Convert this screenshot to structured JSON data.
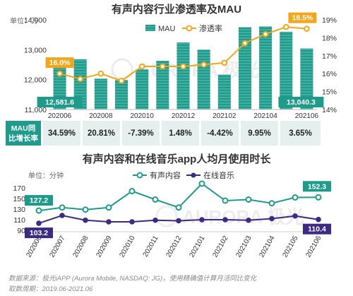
{
  "chart_data": [
    {
      "type": "bar",
      "title": "有声内容行业渗透率及MAU",
      "ylabel_left": "单位：万",
      "categories": [
        "202006",
        "202007",
        "202008",
        "202009",
        "202010",
        "202011",
        "202012",
        "202101",
        "202102",
        "202103",
        "202104",
        "202105",
        "202106"
      ],
      "x_tick_labels": [
        "202006",
        "202008",
        "202010",
        "202012",
        "202102",
        "202104",
        "202106"
      ],
      "ylim_left": [
        11000,
        14000
      ],
      "left_ticks": [
        "14,000",
        "13,000",
        "12,000",
        "11,000"
      ],
      "ylim_right": [
        14,
        19
      ],
      "right_ticks": [
        "19%",
        "18%",
        "17%",
        "16%",
        "15%",
        "14%"
      ],
      "series": [
        {
          "name": "MAU",
          "type": "bar",
          "color": "#1f9b8b",
          "values": [
            12581.6,
            12680,
            12030,
            11990,
            12340,
            12630,
            13240,
            13000,
            12170,
            13750,
            13780,
            13600,
            13040.3
          ]
        },
        {
          "name": "渗透率",
          "type": "line",
          "color": "#f2a71b",
          "values": [
            16.0,
            15.7,
            16.0,
            15.6,
            16.4,
            16.4,
            16.4,
            16.5,
            16.6,
            17.7,
            18.2,
            18.6,
            18.5
          ]
        }
      ],
      "data_labels": {
        "first_bar": "12,581.6",
        "last_bar": "13,040.3",
        "first_line": "16.0%",
        "last_line": "18.5%"
      },
      "growth_row": {
        "label_line1": "MAU同",
        "label_line2": "比增长率",
        "values": [
          "34.59%",
          "20.81%",
          "-7.39%",
          "1.48%",
          "-4.42%",
          "9.95%",
          "3.65%"
        ]
      },
      "watermark": "AURORA 极光"
    },
    {
      "type": "line",
      "title": "有声内容和在线音乐app人均月使用时长",
      "ylabel": "单位：分钟",
      "categories": [
        "202006",
        "202007",
        "202008",
        "202009",
        "202010",
        "202011",
        "202012",
        "202101",
        "202102",
        "202103",
        "202104",
        "202105",
        "202106"
      ],
      "ylim": [
        90,
        170
      ],
      "y_ticks": [
        "170",
        "150",
        "130",
        "110",
        "90"
      ],
      "series": [
        {
          "name": "有声内容",
          "color": "#1f9b8b",
          "values": [
            127.2,
            133,
            129,
            133,
            164,
            148,
            133,
            178,
            146,
            148,
            141,
            152,
            152.3
          ]
        },
        {
          "name": "在线音乐",
          "color": "#3d2a84",
          "values": [
            103.2,
            118,
            109,
            106,
            106,
            109,
            108,
            110,
            110,
            109,
            112,
            117,
            110.4
          ]
        }
      ],
      "data_labels": {
        "first_a": "127.2",
        "last_a": "152.3",
        "first_b": "103.2",
        "last_b": "110.4"
      },
      "watermark": "AURORA 极光"
    }
  ],
  "footer": {
    "source": "数据来源：极光iAPP (Aurora Mobile, NASDAQ: JG)，使用精确值计算月活同比变化",
    "period": "取数周期：2019.06-2021.06"
  }
}
